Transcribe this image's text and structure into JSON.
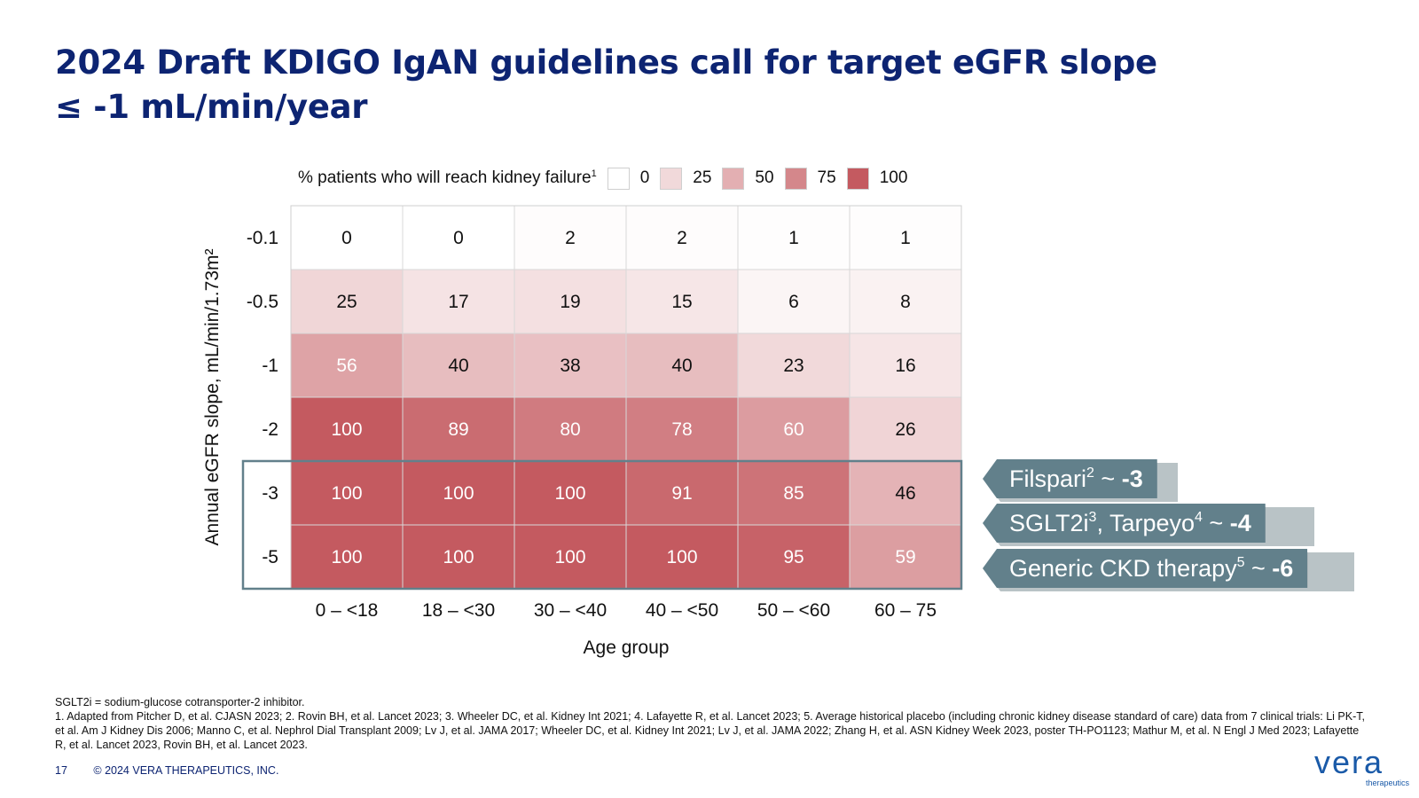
{
  "slide": {
    "title_line1": "2024 Draft KDIGO IgAN guidelines call for target eGFR slope",
    "title_line2": "≤ -1 mL/min/year"
  },
  "legend": {
    "title": "% patients who will reach kidney failure",
    "title_sup": "1",
    "items": [
      {
        "label": "0",
        "color": "#ffffff"
      },
      {
        "label": "25",
        "color": "#f1d9da"
      },
      {
        "label": "50",
        "color": "#e3afb2"
      },
      {
        "label": "75",
        "color": "#d4878b"
      },
      {
        "label": "100",
        "color": "#c45a60"
      }
    ]
  },
  "chart_data": {
    "type": "heatmap",
    "title": "",
    "xlabel": "Age group",
    "ylabel": "Annual eGFR slope, mL/min/1.73m²",
    "x_categories": [
      "0 – <18",
      "18 – <30",
      "30 – <40",
      "40 – <50",
      "50 – <60",
      "60 – 75"
    ],
    "y_categories": [
      "-0.1",
      "-0.5",
      "-1",
      "-2",
      "-3",
      "-5"
    ],
    "values": [
      [
        0,
        0,
        2,
        2,
        1,
        1
      ],
      [
        25,
        17,
        19,
        15,
        6,
        8
      ],
      [
        56,
        40,
        38,
        40,
        23,
        16
      ],
      [
        100,
        89,
        80,
        78,
        60,
        26
      ],
      [
        100,
        100,
        100,
        91,
        85,
        46
      ],
      [
        100,
        100,
        100,
        100,
        95,
        59
      ]
    ],
    "color_scale": {
      "min": 0,
      "max": 100,
      "low_color": "#ffffff",
      "high_color": "#c45a60"
    },
    "highlighted_rows": [
      "-3",
      "-5"
    ]
  },
  "callouts": [
    {
      "name": "Filspari",
      "sup": "2",
      "tilde": " ~ ",
      "value": "-3"
    },
    {
      "name": "SGLT2i",
      "sup": "3",
      "mid": ", Tarpeyo",
      "sup2": "4",
      "tilde": " ~ ",
      "value": "-4"
    },
    {
      "name": "Generic CKD therapy",
      "sup": "5",
      "tilde": " ~ ",
      "value": "-6"
    }
  ],
  "footnotes": {
    "abbrev": "SGLT2i = sodium-glucose cotransporter-2 inhibitor.",
    "refs": "1. Adapted from Pitcher D, et al. CJASN 2023; 2. Rovin BH, et al. Lancet 2023; 3. Wheeler DC, et al. Kidney Int 2021; 4. Lafayette R, et al. Lancet 2023; 5. Average historical placebo (including chronic kidney disease standard of care) data from 7 clinical trials: Li PK-T, et al. Am J Kidney Dis 2006; Manno C, et al. Nephrol Dial Transplant 2009; Lv J, et al. JAMA 2017; Wheeler DC, et al. Kidney Int 2021; Lv J, et al. JAMA 2022; Zhang H, et al. ASN Kidney Week 2023, poster TH-PO1123; Mathur M, et al. N Engl J Med 2023; Lafayette R, et al. Lancet 2023, Rovin BH, et al. Lancet 2023."
  },
  "footer": {
    "page": "17",
    "copyright": "© 2024 VERA THERAPEUTICS, INC."
  },
  "logo": {
    "word": "vera",
    "sub": "therapeutics",
    "color": "#1a5aa8"
  }
}
